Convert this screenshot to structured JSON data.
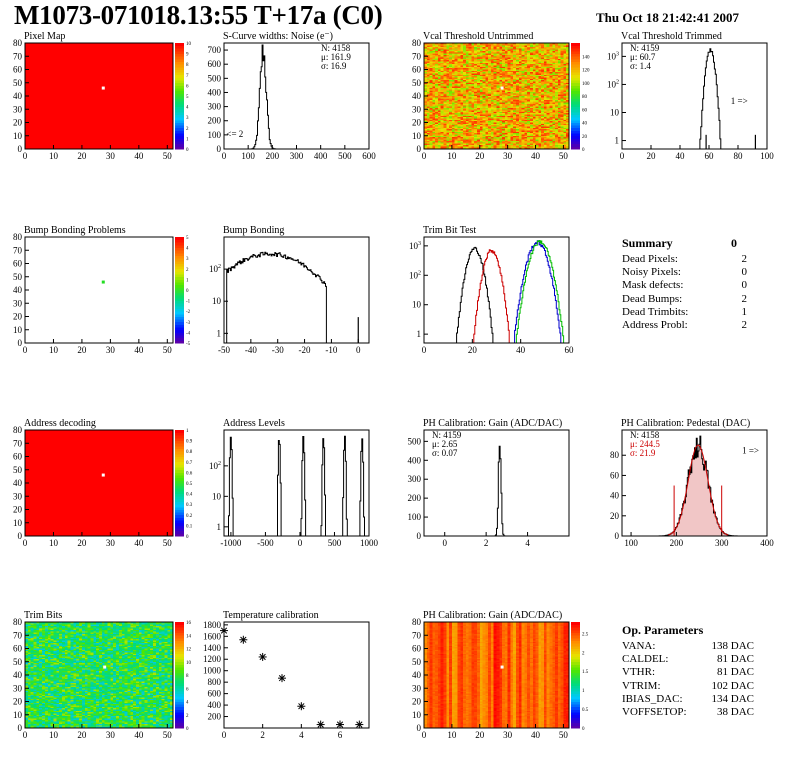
{
  "header": {
    "title": "M1073-071018.13:55 T+17a (C0)",
    "date": "Thu Oct 18 21:42:41 2007"
  },
  "colors": {
    "hist_line": "#000000",
    "trim_red": "#cc0000",
    "trim_blue": "#0000cc",
    "trim_green": "#00bb00",
    "pedestal_text": "#cc0000",
    "map_red": "#ff0000"
  },
  "charts": [
    {
      "id": "pixel-map",
      "type": "heatmap",
      "title": "Pixel Map",
      "xlim": [
        0,
        52
      ],
      "ylim": [
        0,
        80
      ],
      "xticks": [
        0,
        10,
        20,
        30,
        40,
        50
      ],
      "yticks": [
        0,
        10,
        20,
        30,
        40,
        50,
        60,
        70,
        80
      ],
      "zlim": [
        0,
        10
      ],
      "zticks": [
        0,
        1,
        2,
        3,
        4,
        5,
        6,
        7,
        8,
        9,
        10
      ],
      "fill": "uniform-high",
      "hot_pixels": [
        [
          27.5,
          46
        ]
      ]
    },
    {
      "id": "scurve-widths",
      "type": "histogram",
      "title": "S-Curve widths: Noise (e⁻)",
      "xlim": [
        0,
        600
      ],
      "ylim": [
        0,
        750
      ],
      "log": false,
      "xticks": [
        0,
        100,
        200,
        300,
        400,
        500,
        600
      ],
      "yticks": [
        0,
        100,
        200,
        300,
        400,
        500,
        600,
        700
      ],
      "peaks": [
        {
          "mean": 162,
          "sigma": 13,
          "max": 690
        }
      ],
      "stats": [
        "N: 4158",
        "μ: 161.9",
        "σ: 16.9"
      ],
      "annotation": "<= 2",
      "annotation_pos": [
        10,
        0.5
      ]
    },
    {
      "id": "vcal-untrimmed",
      "type": "heatmap",
      "title": "Vcal Threshold Untrimmed",
      "xlim": [
        0,
        52
      ],
      "ylim": [
        0,
        80
      ],
      "xticks": [
        0,
        10,
        20,
        30,
        40,
        50
      ],
      "yticks": [
        0,
        10,
        20,
        30,
        40,
        50,
        60,
        70,
        80
      ],
      "zlim": [
        0,
        160
      ],
      "zticks": [
        0,
        20,
        40,
        60,
        80,
        100,
        120,
        140
      ],
      "fill": "noise-orange",
      "hot_pixels": [
        [
          28,
          46
        ]
      ]
    },
    {
      "id": "vcal-trimmed",
      "type": "histogram",
      "title": "Vcal Threshold Trimmed",
      "xlim": [
        0,
        100
      ],
      "ylim": [
        0.5,
        3000
      ],
      "log": true,
      "xticks": [
        0,
        20,
        40,
        60,
        80,
        100
      ],
      "yticks": [
        1,
        10,
        100,
        1000
      ],
      "peaks": [
        {
          "mean": 61,
          "sigma": 1.8,
          "max": 1700
        }
      ],
      "spikes": [
        [
          58,
          1
        ],
        [
          92,
          1
        ]
      ],
      "stats": [
        "N: 4159",
        "μ: 60.7",
        "σ:  1.4"
      ],
      "annotation": "1 =>",
      "annotation_pos": [
        75,
        0.5
      ]
    },
    {
      "id": "bump-problems",
      "type": "heatmap",
      "title": "Bump Bonding Problems",
      "xlim": [
        0,
        52
      ],
      "ylim": [
        0,
        80
      ],
      "xticks": [
        0,
        10,
        20,
        30,
        40,
        50
      ],
      "yticks": [
        0,
        10,
        20,
        30,
        40,
        50,
        60,
        70,
        80
      ],
      "zlim": [
        -5,
        5
      ],
      "zticks": [
        -5,
        -4,
        -3,
        -2,
        -1,
        0,
        1,
        2,
        3,
        4,
        5
      ],
      "fill": "empty",
      "hot_pixels": [
        [
          27.5,
          46
        ]
      ],
      "hot_color": "#22dd22"
    },
    {
      "id": "bump-bonding",
      "type": "histogram",
      "title": "Bump Bonding",
      "xlim": [
        -50,
        4
      ],
      "ylim": [
        0.5,
        1000
      ],
      "log": true,
      "xticks": [
        -50,
        -40,
        -30,
        -20,
        -10,
        0
      ],
      "yticks": [
        1,
        10,
        100
      ],
      "peaks": [
        {
          "mean": -33,
          "sigma": 10,
          "max": 300,
          "min_x": -49,
          "max_x": -12
        }
      ],
      "spikes": [
        [
          0,
          2
        ]
      ]
    },
    {
      "id": "trim-bit-test",
      "type": "histogram",
      "title": "Trim Bit Test",
      "xlim": [
        0,
        60
      ],
      "ylim": [
        0.5,
        2000
      ],
      "log": true,
      "xticks": [
        0,
        20,
        40,
        60
      ],
      "yticks": [
        1,
        10,
        100,
        1000
      ],
      "peaks": [
        {
          "mean": 21,
          "sigma": 2,
          "max": 800,
          "color": "#000000"
        },
        {
          "mean": 28,
          "sigma": 2,
          "max": 700,
          "color": "#cc0000"
        },
        {
          "mean": 47,
          "sigma": 2.5,
          "max": 1300,
          "color": "#0000cc"
        },
        {
          "mean": 48,
          "sigma": 2.5,
          "max": 1400,
          "color": "#00bb00"
        }
      ]
    },
    {
      "id": "address-decoding",
      "type": "heatmap",
      "title": "Address decoding",
      "xlim": [
        0,
        52
      ],
      "ylim": [
        0,
        80
      ],
      "xticks": [
        0,
        10,
        20,
        30,
        40,
        50
      ],
      "yticks": [
        0,
        10,
        20,
        30,
        40,
        50,
        60,
        70,
        80
      ],
      "zlim": [
        0,
        1
      ],
      "zticks": [
        0,
        0.1,
        0.2,
        0.3,
        0.4,
        0.5,
        0.6,
        0.7,
        0.8,
        0.9,
        1
      ],
      "fill": "uniform-high",
      "hot_pixels": [
        [
          27.5,
          46
        ]
      ]
    },
    {
      "id": "address-levels",
      "type": "histogram",
      "title": "Address Levels",
      "xlim": [
        -1100,
        1000
      ],
      "ylim": [
        0.5,
        1500
      ],
      "log": true,
      "xticks": [
        -1000,
        -500,
        0,
        500,
        1000
      ],
      "yticks": [
        1,
        10,
        100
      ],
      "peaks": [
        {
          "mean": -1000,
          "sigma": 8,
          "max": 900
        },
        {
          "mean": -300,
          "sigma": 8,
          "max": 800
        },
        {
          "mean": 50,
          "sigma": 8,
          "max": 900
        },
        {
          "mean": 340,
          "sigma": 8,
          "max": 800
        },
        {
          "mean": 650,
          "sigma": 8,
          "max": 900
        },
        {
          "mean": 900,
          "sigma": 8,
          "max": 800
        }
      ]
    },
    {
      "id": "ph-gain",
      "type": "histogram",
      "title": "PH Calibration: Gain (ADC/DAC)",
      "xlim": [
        -1,
        6
      ],
      "ylim": [
        0,
        560
      ],
      "log": false,
      "xticks": [
        0,
        2,
        4
      ],
      "yticks": [
        0,
        100,
        200,
        300,
        400,
        500
      ],
      "peaks": [
        {
          "mean": 2.66,
          "sigma": 0.06,
          "max": 540
        }
      ],
      "stats": [
        "N: 4159",
        "μ: 2.65",
        "σ: 0.07"
      ]
    },
    {
      "id": "ph-pedestal",
      "type": "histogram",
      "title": "PH Calibration: Pedestal (DAC)",
      "xlim": [
        80,
        400
      ],
      "ylim": [
        0,
        105
      ],
      "log": false,
      "xticks": [
        100,
        200,
        300,
        400
      ],
      "yticks": [
        0,
        20,
        40,
        60,
        80
      ],
      "peaks": [
        {
          "mean": 248,
          "sigma": 22,
          "max": 90
        }
      ],
      "fit": true,
      "cut_lines": [
        195,
        300
      ],
      "stats": [
        "N: 4158",
        "μ: 244.5",
        "σ: 21.9"
      ],
      "stats_red": [
        false,
        true,
        true
      ],
      "annotation": "1 =>",
      "annotation_pos": [
        345,
        70
      ]
    },
    {
      "id": "trim-bits",
      "type": "heatmap",
      "title": "Trim Bits",
      "xlim": [
        0,
        52
      ],
      "ylim": [
        0,
        80
      ],
      "xticks": [
        0,
        10,
        20,
        30,
        40,
        50
      ],
      "yticks": [
        0,
        10,
        20,
        30,
        40,
        50,
        60,
        70,
        80
      ],
      "zlim": [
        0,
        16
      ],
      "zticks": [
        0,
        2,
        4,
        6,
        8,
        10,
        12,
        14,
        16
      ],
      "fill": "noise-green",
      "hot_pixels": [
        [
          28,
          46
        ]
      ]
    },
    {
      "id": "temperature-calibration",
      "type": "scatter",
      "title": "Temperature calibration",
      "xlim": [
        0,
        7.5
      ],
      "ylim": [
        0,
        1850
      ],
      "xticks": [
        0,
        2,
        4,
        6
      ],
      "yticks": [
        200,
        400,
        600,
        800,
        1000,
        1200,
        1400,
        1600,
        1800
      ],
      "points": [
        [
          0,
          1700
        ],
        [
          1,
          1540
        ],
        [
          2,
          1240
        ],
        [
          3,
          870
        ],
        [
          4,
          380
        ],
        [
          5,
          60
        ],
        [
          6,
          60
        ],
        [
          7,
          60
        ]
      ]
    },
    {
      "id": "ph-gain-map",
      "type": "heatmap",
      "title": "PH Calibration: Gain (ADC/DAC)",
      "xlim": [
        0,
        52
      ],
      "ylim": [
        0,
        80
      ],
      "xticks": [
        0,
        10,
        20,
        30,
        40,
        50
      ],
      "yticks": [
        0,
        10,
        20,
        30,
        40,
        50,
        60,
        70,
        80
      ],
      "zlim": [
        0,
        2.8
      ],
      "zticks": [
        0,
        0.5,
        1,
        1.5,
        2,
        2.5
      ],
      "fill": "striped-red",
      "hot_pixels": [
        [
          28,
          46
        ]
      ]
    }
  ],
  "summary": {
    "heading": "Summary",
    "heading_value": "0",
    "rows": [
      {
        "label": "Dead Pixels:",
        "value": "2"
      },
      {
        "label": "Noisy Pixels:",
        "value": "0"
      },
      {
        "label": "Mask defects:",
        "value": "0"
      },
      {
        "label": "Dead Bumps:",
        "value": "2"
      },
      {
        "label": "Dead Trimbits:",
        "value": "1"
      },
      {
        "label": "Address Probl:",
        "value": "2"
      }
    ]
  },
  "op_params": {
    "heading": "Op. Parameters",
    "rows": [
      {
        "label": "VANA:",
        "value": "138 DAC"
      },
      {
        "label": "CALDEL:",
        "value": "81 DAC"
      },
      {
        "label": "VTHR:",
        "value": "81 DAC"
      },
      {
        "label": "VTRIM:",
        "value": "102 DAC"
      },
      {
        "label": "IBIAS_DAC:",
        "value": "134 DAC"
      },
      {
        "label": "VOFFSETOP:",
        "value": "38 DAC"
      }
    ]
  }
}
